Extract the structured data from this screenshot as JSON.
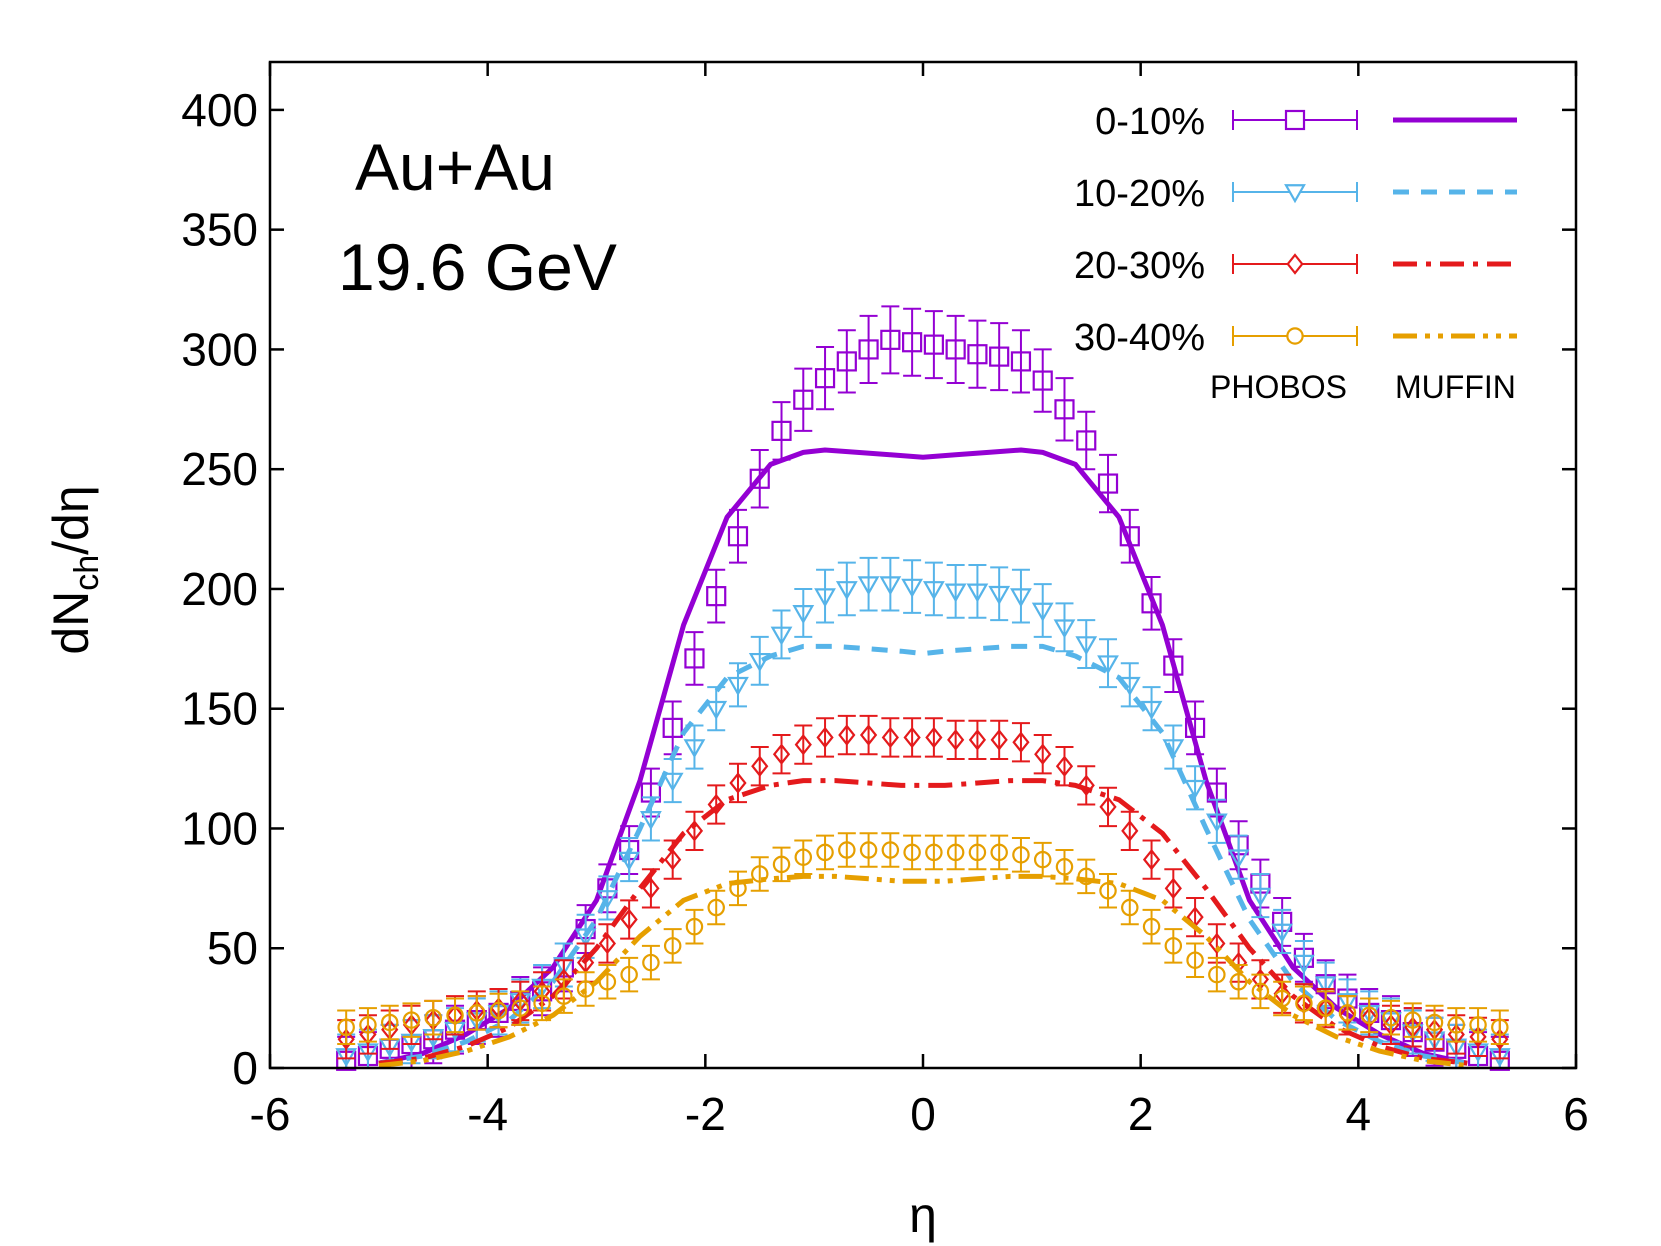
{
  "chart_data": {
    "type": "scatter",
    "xlabel": "η",
    "ylabel_main": "dN",
    "ylabel_sub": "ch",
    "ylabel_tail": "/dη",
    "annotation_line1": "Au+Au",
    "annotation_line2": "19.6 GeV",
    "legend_data_label": "PHOBOS",
    "legend_model_label": "MUFFIN",
    "legend_position": "top-right",
    "grid": false,
    "xlim": [
      -6,
      6
    ],
    "ylim": [
      0,
      420
    ],
    "xticks": [
      -6,
      -4,
      -2,
      0,
      2,
      4,
      6
    ],
    "yticks": [
      0,
      50,
      100,
      150,
      200,
      250,
      300,
      350,
      400
    ],
    "series": [
      {
        "name": "0-10%",
        "color": "#9400d3",
        "marker": "square",
        "line": "solid",
        "data_y": [
          3,
          5,
          8,
          10,
          12,
          16,
          20,
          23,
          28,
          32,
          42,
          58,
          75,
          91,
          115,
          142,
          171,
          197,
          222,
          246,
          266,
          279,
          288,
          295,
          300,
          304,
          303,
          302,
          300,
          298,
          297,
          295,
          287,
          275,
          262,
          244,
          222,
          194,
          168,
          142,
          115,
          93,
          77,
          61,
          46,
          35,
          29,
          23,
          20,
          15,
          11,
          8,
          5,
          3
        ],
        "data_err": [
          10,
          10,
          10,
          10,
          10,
          10,
          10,
          10,
          10,
          10,
          10,
          10,
          10,
          10,
          10,
          11,
          11,
          11,
          11,
          12,
          12,
          13,
          13,
          13,
          14,
          14,
          14,
          14,
          14,
          14,
          14,
          13,
          13,
          13,
          12,
          12,
          11,
          11,
          11,
          11,
          10,
          10,
          10,
          10,
          10,
          10,
          10,
          10,
          10,
          10,
          10,
          10,
          10,
          10
        ],
        "model_x": [
          -5,
          -4.6,
          -4.2,
          -3.8,
          -3.4,
          -3.0,
          -2.6,
          -2.2,
          -1.8,
          -1.4,
          -1.1,
          -0.9,
          -0.6,
          -0.3,
          0,
          0.3,
          0.6,
          0.9,
          1.1,
          1.4,
          1.8,
          2.2,
          2.6,
          3.0,
          3.4,
          3.8,
          4.2,
          4.6,
          5.0
        ],
        "model_y": [
          2,
          6,
          14,
          25,
          42,
          70,
          120,
          185,
          230,
          252,
          257,
          258,
          257,
          256,
          255,
          256,
          257,
          258,
          257,
          252,
          230,
          185,
          120,
          70,
          42,
          25,
          14,
          6,
          2
        ]
      },
      {
        "name": "10-20%",
        "color": "#56b4e9",
        "marker": "triangle-down",
        "line": "dashed",
        "data_y": [
          5,
          7,
          9,
          11,
          13,
          16,
          20,
          23,
          28,
          34,
          43,
          55,
          71,
          87,
          104,
          120,
          134,
          150,
          160,
          170,
          181,
          190,
          197,
          200,
          202,
          202,
          201,
          200,
          199,
          199,
          198,
          197,
          191,
          184,
          177,
          169,
          160,
          150,
          134,
          117,
          103,
          88,
          72,
          57,
          44,
          35,
          28,
          23,
          20,
          15,
          12,
          9,
          7,
          5
        ],
        "data_err": [
          9,
          9,
          9,
          9,
          9,
          9,
          9,
          9,
          9,
          9,
          9,
          9,
          9,
          9,
          9,
          9,
          9,
          9,
          9,
          10,
          10,
          10,
          11,
          11,
          11,
          11,
          11,
          11,
          11,
          11,
          11,
          11,
          11,
          10,
          10,
          10,
          9,
          9,
          9,
          9,
          9,
          9,
          9,
          9,
          9,
          9,
          9,
          9,
          9,
          9,
          9,
          9,
          9,
          9
        ],
        "model_x": [
          -5,
          -4.6,
          -4.2,
          -3.8,
          -3.4,
          -3.0,
          -2.6,
          -2.2,
          -1.8,
          -1.4,
          -1.1,
          -0.8,
          -0.5,
          -0.2,
          0,
          0.2,
          0.5,
          0.8,
          1.1,
          1.4,
          1.8,
          2.2,
          2.6,
          3.0,
          3.4,
          3.8,
          4.2,
          4.6,
          5.0
        ],
        "model_y": [
          2,
          5,
          11,
          20,
          36,
          62,
          100,
          140,
          163,
          172,
          176,
          176,
          175,
          174,
          173,
          174,
          175,
          176,
          176,
          172,
          163,
          140,
          100,
          62,
          36,
          20,
          11,
          5,
          2
        ]
      },
      {
        "name": "20-30%",
        "color": "#e41a1c",
        "marker": "diamond",
        "line": "dash-dot",
        "data_y": [
          12,
          14,
          16,
          18,
          20,
          22,
          24,
          25,
          28,
          32,
          37,
          44,
          52,
          62,
          75,
          87,
          99,
          110,
          119,
          126,
          131,
          135,
          138,
          139,
          139,
          138,
          138,
          138,
          137,
          137,
          137,
          136,
          131,
          126,
          118,
          109,
          99,
          87,
          75,
          63,
          52,
          44,
          37,
          31,
          27,
          25,
          22,
          21,
          18,
          17,
          16,
          14,
          13,
          12
        ],
        "data_err": [
          8,
          8,
          8,
          8,
          8,
          8,
          8,
          8,
          8,
          8,
          8,
          8,
          8,
          8,
          8,
          8,
          8,
          8,
          8,
          8,
          8,
          8,
          8,
          8,
          8,
          8,
          8,
          8,
          8,
          8,
          8,
          8,
          8,
          8,
          8,
          8,
          8,
          8,
          8,
          8,
          8,
          8,
          8,
          8,
          8,
          8,
          8,
          8,
          8,
          8,
          8,
          8,
          8,
          8
        ],
        "model_x": [
          -5,
          -4.6,
          -4.2,
          -3.8,
          -3.4,
          -3.0,
          -2.6,
          -2.2,
          -1.8,
          -1.4,
          -1.1,
          -0.8,
          -0.5,
          -0.2,
          0,
          0.2,
          0.5,
          0.8,
          1.1,
          1.4,
          1.8,
          2.2,
          2.6,
          3.0,
          3.4,
          3.8,
          4.2,
          4.6,
          5.0
        ],
        "model_y": [
          2,
          4,
          9,
          17,
          30,
          50,
          75,
          98,
          112,
          118,
          120,
          120,
          119,
          118,
          118,
          118,
          119,
          120,
          120,
          118,
          112,
          98,
          75,
          50,
          30,
          17,
          9,
          4,
          2
        ]
      },
      {
        "name": "30-40%",
        "color": "#e69f00",
        "marker": "circle",
        "line": "dash-dot-dot",
        "data_y": [
          17,
          18,
          19,
          20,
          21,
          22,
          23,
          24,
          25,
          27,
          30,
          33,
          36,
          39,
          44,
          51,
          59,
          67,
          75,
          81,
          85,
          88,
          90,
          91,
          91,
          91,
          90,
          90,
          90,
          90,
          90,
          89,
          87,
          84,
          80,
          74,
          67,
          59,
          51,
          45,
          39,
          36,
          32,
          29,
          27,
          25,
          23,
          22,
          21,
          20,
          19,
          18,
          18,
          17
        ],
        "data_err": [
          7,
          7,
          7,
          7,
          7,
          7,
          7,
          7,
          7,
          7,
          7,
          7,
          7,
          7,
          7,
          7,
          7,
          7,
          7,
          7,
          7,
          7,
          7,
          7,
          7,
          7,
          7,
          7,
          7,
          7,
          7,
          7,
          7,
          7,
          7,
          7,
          7,
          7,
          7,
          7,
          7,
          7,
          7,
          7,
          7,
          7,
          7,
          7,
          7,
          7,
          7,
          7,
          7,
          7
        ],
        "model_x": [
          -5,
          -4.6,
          -4.2,
          -3.8,
          -3.4,
          -3.0,
          -2.6,
          -2.2,
          -1.8,
          -1.4,
          -1.1,
          -0.8,
          -0.5,
          -0.2,
          0,
          0.2,
          0.5,
          0.8,
          1.1,
          1.4,
          1.8,
          2.2,
          2.6,
          3.0,
          3.4,
          3.8,
          4.2,
          4.6,
          5.0
        ],
        "model_y": [
          1,
          3,
          7,
          13,
          22,
          36,
          55,
          70,
          77,
          79,
          80,
          80,
          79,
          78,
          78,
          78,
          79,
          80,
          80,
          79,
          77,
          70,
          55,
          36,
          22,
          13,
          7,
          3,
          1
        ]
      }
    ]
  }
}
